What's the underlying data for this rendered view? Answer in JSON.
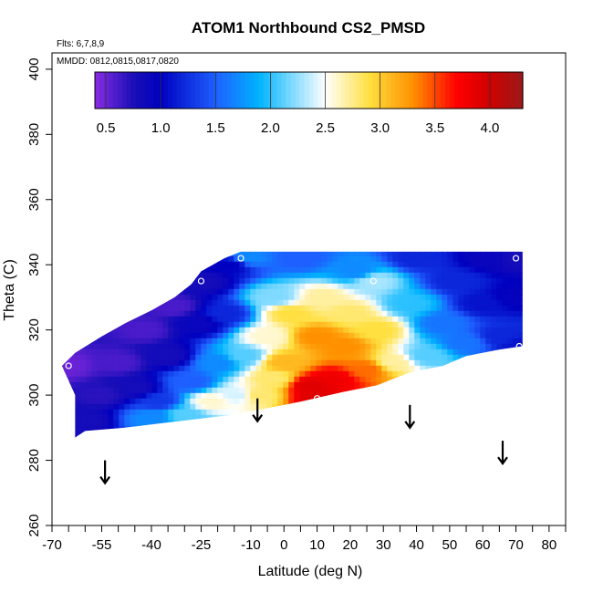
{
  "chart_data": {
    "type": "heatmap",
    "title": "ATOM1 Northbound CS2_PMSD",
    "subtitle": "Flts: 6,7,8,9",
    "annotation": "MMDD: 0812,0815,0817,0820",
    "xlabel": "Latitude (deg N)",
    "ylabel": "Theta (C)",
    "xlim": [
      -70,
      85
    ],
    "ylim": [
      260,
      405
    ],
    "xticks": [
      -70,
      -55,
      -40,
      -25,
      -10,
      0,
      10,
      20,
      30,
      40,
      50,
      60,
      70,
      80
    ],
    "xtick_labels": [
      "-70",
      "-55",
      "-40",
      "-25",
      "-10",
      "0",
      "10",
      "20",
      "30",
      "40",
      "50",
      "60",
      "70",
      "80"
    ],
    "x_minor_ticks": [
      -65,
      -60,
      -50,
      -45,
      -35,
      -30,
      -20,
      -15,
      -5,
      5,
      15,
      25,
      35,
      45,
      55,
      65,
      75,
      85
    ],
    "yticks": [
      260,
      280,
      300,
      320,
      340,
      360,
      380,
      400
    ],
    "ytick_labels": [
      "260",
      "280",
      "300",
      "320",
      "340",
      "360",
      "380",
      "400"
    ],
    "colorbar": {
      "range": [
        0.4,
        4.3
      ],
      "ticks": [
        0.5,
        1.0,
        1.5,
        2.0,
        2.5,
        3.0,
        3.5,
        4.0
      ],
      "tick_labels": [
        "0.5",
        "1.0",
        "1.5",
        "2.0",
        "2.5",
        "3.0",
        "3.5",
        "4.0"
      ],
      "stops": [
        {
          "v": 0.4,
          "color": "#8a2be2"
        },
        {
          "v": 0.75,
          "color": "#1a0fb8"
        },
        {
          "v": 1.0,
          "color": "#0000c0"
        },
        {
          "v": 1.5,
          "color": "#1e5fff"
        },
        {
          "v": 1.9,
          "color": "#00b4ff"
        },
        {
          "v": 2.5,
          "color": "#ffffff"
        },
        {
          "v": 2.9,
          "color": "#ffe040"
        },
        {
          "v": 3.3,
          "color": "#ff9000"
        },
        {
          "v": 3.7,
          "color": "#ff0000"
        },
        {
          "v": 4.0,
          "color": "#d00000"
        },
        {
          "v": 4.3,
          "color": "#9a1a1a"
        }
      ]
    },
    "domain_outline": [
      [
        -63,
        287
      ],
      [
        -63,
        300
      ],
      [
        -67,
        309
      ],
      [
        -63,
        313
      ],
      [
        -55,
        318
      ],
      [
        -48,
        322
      ],
      [
        -40,
        326
      ],
      [
        -33,
        330
      ],
      [
        -28,
        334
      ],
      [
        -25,
        338
      ],
      [
        -18,
        342
      ],
      [
        -13,
        344
      ],
      [
        72,
        344
      ],
      [
        72,
        315
      ],
      [
        65,
        314
      ],
      [
        55,
        312
      ],
      [
        48,
        309
      ],
      [
        38,
        307
      ],
      [
        28,
        303
      ],
      [
        18,
        301
      ],
      [
        5,
        298
      ],
      [
        -5,
        296
      ],
      [
        -15,
        294
      ],
      [
        -32,
        292
      ],
      [
        -48,
        290
      ],
      [
        -60,
        289
      ]
    ],
    "field_points": [
      {
        "lat": -66,
        "theta": 309,
        "value": 0.5
      },
      {
        "lat": -60,
        "theta": 292,
        "value": 0.8
      },
      {
        "lat": -55,
        "theta": 300,
        "value": 0.7
      },
      {
        "lat": -50,
        "theta": 310,
        "value": 0.6
      },
      {
        "lat": -45,
        "theta": 302,
        "value": 0.8
      },
      {
        "lat": -42,
        "theta": 320,
        "value": 0.6
      },
      {
        "lat": -40,
        "theta": 293,
        "value": 1.7
      },
      {
        "lat": -38,
        "theta": 298,
        "value": 1.3
      },
      {
        "lat": -35,
        "theta": 312,
        "value": 0.8
      },
      {
        "lat": -33,
        "theta": 327,
        "value": 0.6
      },
      {
        "lat": -30,
        "theta": 294,
        "value": 2.1
      },
      {
        "lat": -28,
        "theta": 304,
        "value": 1.5
      },
      {
        "lat": -26,
        "theta": 322,
        "value": 0.9
      },
      {
        "lat": -24,
        "theta": 335,
        "value": 0.8
      },
      {
        "lat": -22,
        "theta": 298,
        "value": 2.6
      },
      {
        "lat": -20,
        "theta": 310,
        "value": 1.7
      },
      {
        "lat": -18,
        "theta": 325,
        "value": 1.2
      },
      {
        "lat": -16,
        "theta": 340,
        "value": 1.0
      },
      {
        "lat": -14,
        "theta": 300,
        "value": 2.4
      },
      {
        "lat": -12,
        "theta": 312,
        "value": 2.1
      },
      {
        "lat": -11,
        "theta": 342,
        "value": 1.7
      },
      {
        "lat": -8,
        "theta": 300,
        "value": 2.8
      },
      {
        "lat": -5,
        "theta": 318,
        "value": 2.6
      },
      {
        "lat": -3,
        "theta": 330,
        "value": 2.2
      },
      {
        "lat": -3,
        "theta": 305,
        "value": 2.8
      },
      {
        "lat": 0,
        "theta": 310,
        "value": 3.1
      },
      {
        "lat": 2,
        "theta": 325,
        "value": 2.9
      },
      {
        "lat": 5,
        "theta": 342,
        "value": 1.5
      },
      {
        "lat": 8,
        "theta": 303,
        "value": 3.9
      },
      {
        "lat": 10,
        "theta": 299,
        "value": 3.9
      },
      {
        "lat": 10,
        "theta": 318,
        "value": 3.3
      },
      {
        "lat": 12,
        "theta": 330,
        "value": 2.7
      },
      {
        "lat": 15,
        "theta": 305,
        "value": 3.8
      },
      {
        "lat": 18,
        "theta": 315,
        "value": 3.3
      },
      {
        "lat": 20,
        "theta": 325,
        "value": 2.8
      },
      {
        "lat": 22,
        "theta": 338,
        "value": 1.7
      },
      {
        "lat": 25,
        "theta": 308,
        "value": 3.4
      },
      {
        "lat": 27,
        "theta": 335,
        "value": 2.3
      },
      {
        "lat": 28,
        "theta": 320,
        "value": 2.9
      },
      {
        "lat": 33,
        "theta": 310,
        "value": 2.7
      },
      {
        "lat": 38,
        "theta": 328,
        "value": 2.0
      },
      {
        "lat": 40,
        "theta": 342,
        "value": 1.2
      },
      {
        "lat": 43,
        "theta": 312,
        "value": 2.1
      },
      {
        "lat": 48,
        "theta": 322,
        "value": 1.6
      },
      {
        "lat": 52,
        "theta": 335,
        "value": 1.2
      },
      {
        "lat": 55,
        "theta": 316,
        "value": 1.6
      },
      {
        "lat": 60,
        "theta": 328,
        "value": 1.1
      },
      {
        "lat": 62,
        "theta": 342,
        "value": 0.9
      },
      {
        "lat": 65,
        "theta": 318,
        "value": 1.2
      },
      {
        "lat": 70,
        "theta": 342,
        "value": 0.8
      },
      {
        "lat": 71,
        "theta": 315,
        "value": 1.1
      },
      {
        "lat": 70,
        "theta": 330,
        "value": 0.95
      }
    ],
    "sample_markers": [
      {
        "lat": -65,
        "theta": 309
      },
      {
        "lat": -25,
        "theta": 335
      },
      {
        "lat": -13,
        "theta": 342
      },
      {
        "lat": 10,
        "theta": 299
      },
      {
        "lat": 27,
        "theta": 335
      },
      {
        "lat": 70,
        "theta": 342
      },
      {
        "lat": 71,
        "theta": 315
      }
    ],
    "arrows": [
      {
        "lat": -54,
        "theta_top": 280,
        "theta_bottom": 273
      },
      {
        "lat": -8,
        "theta_top": 299,
        "theta_bottom": 292
      },
      {
        "lat": 38,
        "theta_top": 297,
        "theta_bottom": 290
      },
      {
        "lat": 66,
        "theta_top": 286,
        "theta_bottom": 279
      }
    ]
  }
}
